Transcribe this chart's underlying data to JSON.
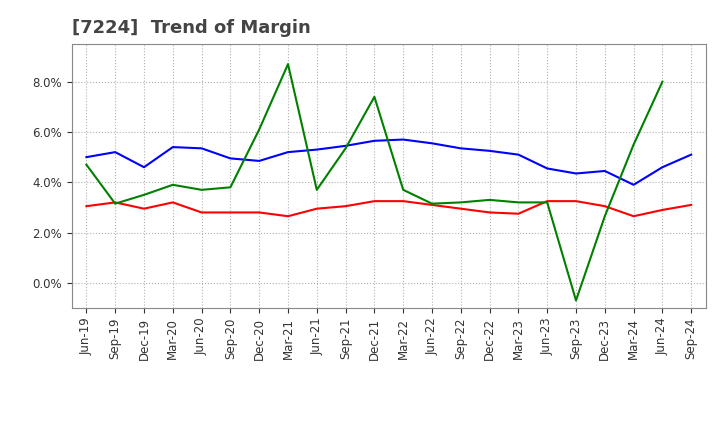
{
  "title": "[7224]  Trend of Margin",
  "x_labels": [
    "Jun-19",
    "Sep-19",
    "Dec-19",
    "Mar-20",
    "Jun-20",
    "Sep-20",
    "Dec-20",
    "Mar-21",
    "Jun-21",
    "Sep-21",
    "Dec-21",
    "Mar-22",
    "Jun-22",
    "Sep-22",
    "Dec-22",
    "Mar-23",
    "Jun-23",
    "Sep-23",
    "Dec-23",
    "Mar-24",
    "Jun-24",
    "Sep-24"
  ],
  "ordinary_income": [
    5.0,
    5.2,
    4.6,
    5.4,
    5.35,
    4.95,
    4.85,
    5.2,
    5.3,
    5.45,
    5.65,
    5.7,
    5.55,
    5.35,
    5.25,
    5.1,
    4.55,
    4.35,
    4.45,
    3.9,
    4.6,
    5.1
  ],
  "net_income": [
    3.05,
    3.2,
    2.95,
    3.2,
    2.8,
    2.8,
    2.8,
    2.65,
    2.95,
    3.05,
    3.25,
    3.25,
    3.1,
    2.95,
    2.8,
    2.75,
    3.25,
    3.25,
    3.05,
    2.65,
    2.9,
    3.1
  ],
  "operating_cashflow": [
    4.7,
    3.15,
    3.5,
    3.9,
    3.7,
    3.8,
    6.1,
    8.7,
    3.7,
    5.35,
    7.4,
    3.7,
    3.15,
    3.2,
    3.3,
    3.2,
    3.2,
    -0.7,
    2.65,
    5.5,
    8.0,
    null
  ],
  "ylim": [
    -1.0,
    9.5
  ],
  "yticks": [
    0.0,
    2.0,
    4.0,
    6.0,
    8.0
  ],
  "ordinary_color": "#0000FF",
  "net_color": "#FF0000",
  "cashflow_color": "#008000",
  "bg_color": "#FFFFFF",
  "grid_color": "#AAAAAA",
  "title_color": "#444444",
  "title_fontsize": 13,
  "label_fontsize": 8.5,
  "legend_fontsize": 10
}
